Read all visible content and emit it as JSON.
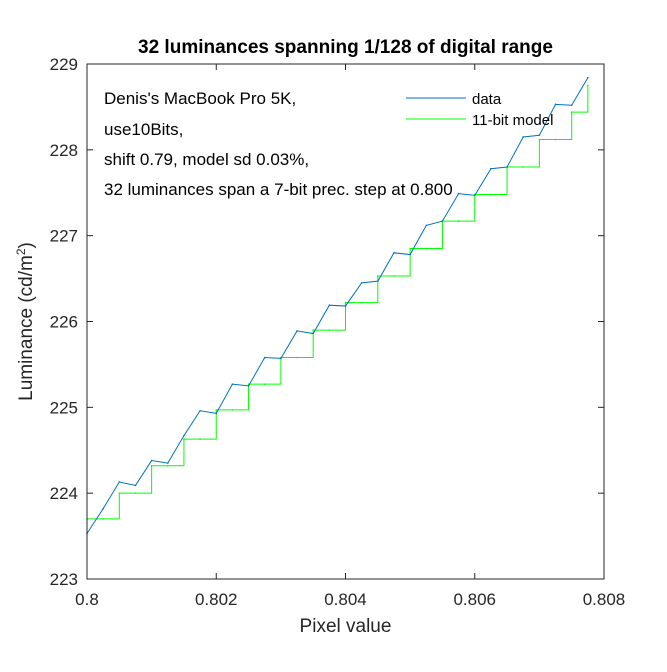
{
  "chart_data": {
    "type": "line",
    "title": "32 luminances spanning 1/128 of digital range",
    "xlabel": "Pixel value",
    "ylabel_main": "Luminance (cd/m",
    "ylabel_sup": "2",
    "ylabel_tail": ")",
    "xlim": [
      0.8,
      0.808
    ],
    "ylim": [
      223,
      229
    ],
    "xticks": [
      0.8,
      0.802,
      0.804,
      0.806,
      0.808
    ],
    "xtick_labels": [
      "0.8",
      "0.802",
      "0.804",
      "0.806",
      "0.808"
    ],
    "yticks": [
      223,
      224,
      225,
      226,
      227,
      228,
      229
    ],
    "ytick_labels": [
      "223",
      "224",
      "225",
      "226",
      "227",
      "228",
      "229"
    ],
    "grid": false,
    "legend_position": "top-right",
    "annotations": [
      "Denis's MacBook Pro 5K,",
      "use10Bits,",
      "shift 0.79, model sd 0.03%,",
      "32 luminances span a 7-bit prec. step at 0.800"
    ],
    "series": [
      {
        "name": "data",
        "color": "#0072bd",
        "style": "line",
        "x": [
          0.8,
          0.80025,
          0.8005,
          0.80075,
          0.801,
          0.80125,
          0.8015,
          0.80175,
          0.802,
          0.80225,
          0.8025,
          0.80275,
          0.803,
          0.80325,
          0.8035,
          0.80375,
          0.804,
          0.80425,
          0.8045,
          0.80475,
          0.805,
          0.80525,
          0.8055,
          0.80575,
          0.806,
          0.80625,
          0.8065,
          0.80675,
          0.807,
          0.80725,
          0.8075,
          0.80775
        ],
        "y": [
          223.53,
          223.82,
          224.13,
          224.09,
          224.38,
          224.35,
          224.67,
          224.96,
          224.93,
          225.27,
          225.25,
          225.58,
          225.57,
          225.89,
          225.86,
          226.19,
          226.18,
          226.45,
          226.47,
          226.8,
          226.78,
          227.12,
          227.17,
          227.49,
          227.47,
          227.78,
          227.8,
          228.15,
          228.17,
          228.53,
          228.52,
          228.84
        ]
      },
      {
        "name": "11-bit model",
        "color": "#00ff00",
        "style": "step",
        "x": [
          0.8,
          0.80025,
          0.8005,
          0.80075,
          0.801,
          0.80125,
          0.8015,
          0.80175,
          0.802,
          0.80225,
          0.8025,
          0.80275,
          0.803,
          0.80325,
          0.8035,
          0.80375,
          0.804,
          0.80425,
          0.8045,
          0.80475,
          0.805,
          0.80525,
          0.8055,
          0.80575,
          0.806,
          0.80625,
          0.8065,
          0.80675,
          0.807,
          0.80725,
          0.8075,
          0.80775
        ],
        "y": [
          223.7,
          223.7,
          224.0,
          224.0,
          224.32,
          224.32,
          224.63,
          224.63,
          224.97,
          224.97,
          225.27,
          225.27,
          225.58,
          225.58,
          225.9,
          225.9,
          226.22,
          226.22,
          226.53,
          226.53,
          226.85,
          226.85,
          227.17,
          227.17,
          227.48,
          227.48,
          227.8,
          227.8,
          228.12,
          228.12,
          228.44,
          228.75
        ]
      }
    ]
  }
}
